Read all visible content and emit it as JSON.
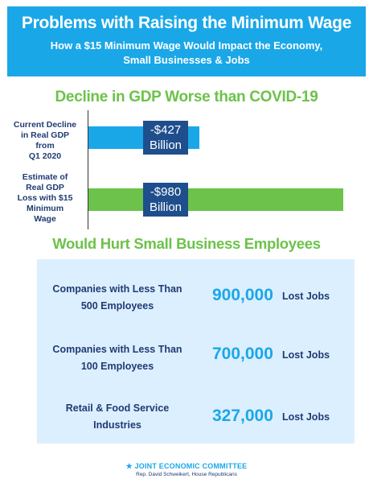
{
  "header": {
    "title": "Problems with Raising the Minimum Wage",
    "subtitle_line1": "How a $15 Minimum Wage Would Impact the Economy,",
    "subtitle_line2": "Small Businesses & Jobs"
  },
  "colors": {
    "header_bg": "#1aa7e8",
    "accent_green": "#6cc24a",
    "navy": "#1f4e8c",
    "bar_blue": "#1aa7e8",
    "bar_green": "#6cc24a",
    "panel_bg": "#dcefff"
  },
  "chart_data": {
    "type": "bar",
    "orientation": "horizontal",
    "title": "Decline in GDP Worse than COVID-19",
    "unit": "Billion",
    "categories": [
      "Current Decline in Real GDP from Q1 2020",
      "Estimate of Real GDP Loss with $15 Minimum Wage"
    ],
    "values": [
      -427,
      -980
    ],
    "value_labels": [
      "-$427",
      "-$980"
    ],
    "bar_colors": [
      "#1aa7e8",
      "#6cc24a"
    ],
    "label_lines": [
      [
        "Current Decline",
        "in Real GDP",
        "from",
        "Q1 2020"
      ],
      [
        "Estimate of",
        "Real GDP",
        "Loss with $15",
        "Minimum",
        "Wage"
      ]
    ]
  },
  "small_business": {
    "title": "Would Hurt Small Business Employees",
    "rows": [
      {
        "line1": "Companies with Less Than",
        "line2": "500 Employees",
        "number": "900,000",
        "unit": "Lost Jobs"
      },
      {
        "line1": "Companies with Less Than",
        "line2": "100 Employees",
        "number": "700,000",
        "unit": "Lost Jobs"
      },
      {
        "line1": "Retail & Food Service",
        "line2": "Industries",
        "number": "327,000",
        "unit": "Lost Jobs"
      }
    ]
  },
  "footer": {
    "org": "JOINT ECONOMIC COMMITTEE",
    "sub": "Rep. David Schweikert, House Republicans"
  }
}
